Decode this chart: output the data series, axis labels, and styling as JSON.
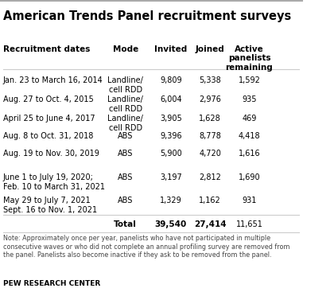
{
  "title": "American Trends Panel recruitment surveys",
  "col_headers": [
    "Recruitment dates",
    "Mode",
    "Invited",
    "Joined",
    "Active\npanelists\nremaining"
  ],
  "rows": [
    {
      "dates": "Jan. 23 to March 16, 2014",
      "dates_line2": null,
      "mode": "Landline/\ncell RDD",
      "invited": "9,809",
      "joined": "5,338",
      "active": "1,592"
    },
    {
      "dates": "Aug. 27 to Oct. 4, 2015",
      "dates_line2": null,
      "mode": "Landline/\ncell RDD",
      "invited": "6,004",
      "joined": "2,976",
      "active": "935"
    },
    {
      "dates": "April 25 to June 4, 2017",
      "dates_line2": null,
      "mode": "Landline/\ncell RDD",
      "invited": "3,905",
      "joined": "1,628",
      "active": "469"
    },
    {
      "dates": "Aug. 8 to Oct. 31, 2018",
      "dates_line2": null,
      "mode": "ABS",
      "invited": "9,396",
      "joined": "8,778",
      "active": "4,418"
    },
    {
      "dates": "Aug. 19 to Nov. 30, 2019",
      "dates_line2": null,
      "mode": "ABS",
      "invited": "5,900",
      "joined": "4,720",
      "active": "1,616"
    },
    {
      "dates": "June 1 to July 19, 2020;",
      "dates_line2": "Feb. 10 to March 31, 2021",
      "mode": "ABS",
      "invited": "3,197",
      "joined": "2,812",
      "active": "1,690"
    },
    {
      "dates": "May 29 to July 7, 2021",
      "dates_line2": "Sept. 16 to Nov. 1, 2021",
      "mode": "ABS",
      "invited": "1,329",
      "joined": "1,162",
      "active": "931"
    }
  ],
  "total_row": {
    "label": "Total",
    "invited": "39,540",
    "joined": "27,414",
    "active": "11,651"
  },
  "note": "Note: Approximately once per year, panelists who have not participated in multiple\nconsecutive waves or who did not complete an annual profiling survey are removed from\nthe panel. Panelists also become inactive if they ask to be removed from the panel.",
  "source": "PEW RESEARCH CENTER",
  "bg_color": "#ffffff",
  "header_color": "#000000",
  "text_color": "#000000",
  "line_color": "#cccccc",
  "title_color": "#000000"
}
